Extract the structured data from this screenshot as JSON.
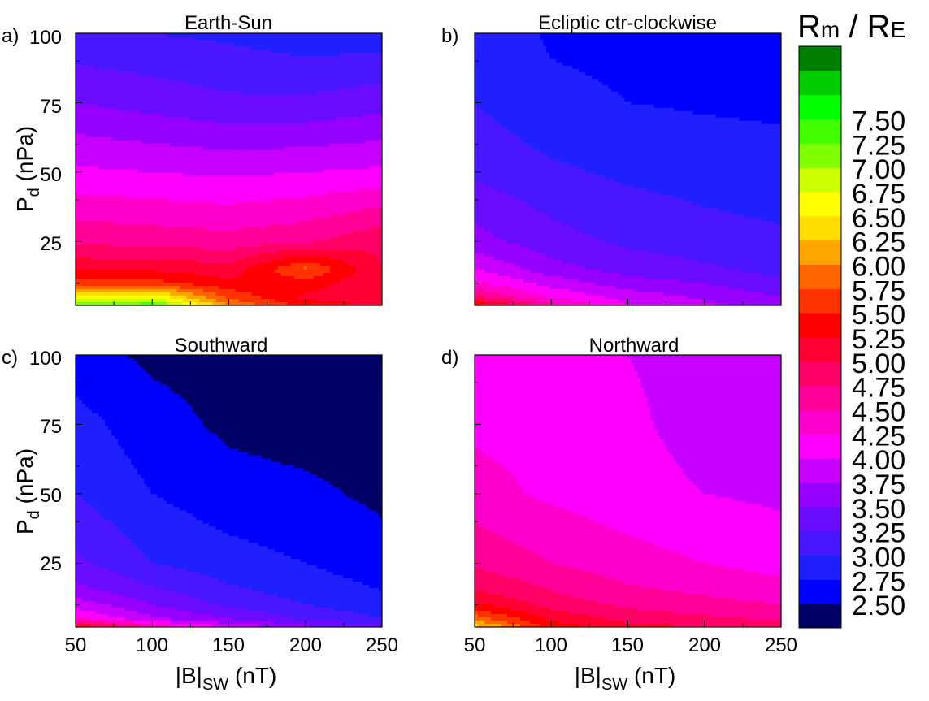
{
  "chart_data": [
    {
      "type": "heatmap",
      "panel": "a)",
      "title": "Earth-Sun",
      "x_label": "|B|",
      "x_label_sub": "SW",
      "x_label_unit": "(nT)",
      "y_label": "P",
      "y_label_sub": "d",
      "y_label_unit": "(nPa)",
      "xlim": [
        50,
        250
      ],
      "ylim": [
        2,
        100
      ],
      "x": [
        50,
        100,
        150,
        200,
        250
      ],
      "y": [
        2,
        5,
        10,
        15,
        25,
        50,
        75,
        100
      ],
      "z": [
        [
          7.3,
          7.4,
          6.0,
          5.4,
          5.2
        ],
        [
          6.6,
          6.7,
          5.7,
          5.2,
          5.0
        ],
        [
          5.6,
          5.6,
          5.3,
          5.4,
          5.0
        ],
        [
          5.2,
          5.2,
          5.1,
          5.8,
          5.0
        ],
        [
          4.7,
          4.65,
          4.6,
          4.7,
          4.95
        ],
        [
          4.05,
          4.0,
          3.95,
          4.0,
          4.05
        ],
        [
          3.5,
          3.4,
          3.3,
          3.3,
          3.4
        ],
        [
          3.05,
          3.0,
          2.95,
          2.85,
          2.85
        ]
      ]
    },
    {
      "type": "heatmap",
      "panel": "b)",
      "title": "Ecliptic ctr-clockwise",
      "x_label": "",
      "y_label": "",
      "xlim": [
        50,
        250
      ],
      "ylim": [
        2,
        100
      ],
      "x": [
        50,
        100,
        150,
        200,
        250
      ],
      "y": [
        2,
        5,
        10,
        15,
        25,
        50,
        75,
        100
      ],
      "z": [
        [
          5.5,
          4.6,
          4.0,
          3.8,
          3.6
        ],
        [
          4.8,
          4.2,
          3.9,
          3.7,
          3.5
        ],
        [
          4.3,
          3.9,
          3.6,
          3.5,
          3.3
        ],
        [
          4.0,
          3.6,
          3.4,
          3.3,
          3.15
        ],
        [
          3.6,
          3.35,
          3.2,
          3.1,
          3.05
        ],
        [
          3.2,
          3.05,
          2.95,
          2.9,
          2.85
        ],
        [
          3.0,
          2.8,
          2.75,
          2.72,
          2.7
        ],
        [
          2.9,
          2.72,
          2.7,
          2.68,
          2.66
        ]
      ]
    },
    {
      "type": "heatmap",
      "panel": "c)",
      "title": "Southward",
      "x_label": "|B|",
      "x_label_sub": "SW",
      "x_label_unit": "(nT)",
      "y_label": "P",
      "y_label_sub": "d",
      "y_label_unit": "(nPa)",
      "xlim": [
        50,
        250
      ],
      "ylim": [
        2,
        100
      ],
      "x": [
        50,
        100,
        150,
        200,
        250
      ],
      "y": [
        2,
        5,
        10,
        15,
        25,
        50,
        75,
        100
      ],
      "z": [
        [
          5.4,
          4.5,
          4.0,
          3.6,
          3.3
        ],
        [
          4.3,
          3.8,
          3.5,
          3.2,
          3.0
        ],
        [
          3.9,
          3.5,
          3.2,
          3.0,
          2.85
        ],
        [
          3.6,
          3.3,
          3.05,
          2.9,
          2.75
        ],
        [
          3.3,
          3.0,
          2.85,
          2.75,
          2.6
        ],
        [
          3.0,
          2.75,
          2.6,
          2.55,
          2.45
        ],
        [
          2.85,
          2.6,
          2.45,
          2.4,
          2.4
        ],
        [
          2.6,
          2.45,
          2.4,
          2.4,
          2.4
        ]
      ]
    },
    {
      "type": "heatmap",
      "panel": "d)",
      "title": "Northward",
      "x_label": "|B|",
      "x_label_sub": "SW",
      "x_label_unit": "(nT)",
      "y_label": "",
      "xlim": [
        50,
        250
      ],
      "ylim": [
        2,
        100
      ],
      "x": [
        50,
        100,
        150,
        200,
        250
      ],
      "y": [
        2,
        5,
        10,
        15,
        25,
        50,
        75,
        100
      ],
      "z": [
        [
          6.4,
          5.4,
          5.1,
          5.0,
          4.9
        ],
        [
          5.9,
          5.2,
          4.9,
          4.8,
          4.7
        ],
        [
          5.3,
          4.9,
          4.7,
          4.6,
          4.5
        ],
        [
          5.0,
          4.75,
          4.55,
          4.45,
          4.35
        ],
        [
          4.7,
          4.5,
          4.35,
          4.25,
          4.15
        ],
        [
          4.35,
          4.2,
          4.1,
          4.0,
          3.95
        ],
        [
          4.2,
          4.15,
          4.05,
          3.9,
          3.85
        ],
        [
          4.15,
          4.1,
          4.0,
          3.9,
          3.85
        ]
      ]
    }
  ],
  "axes": {
    "x_ticks": [
      "50",
      "100",
      "150",
      "200",
      "250"
    ],
    "y_ticks": [
      "25",
      "50",
      "75",
      "100"
    ]
  },
  "colorbar": {
    "title_main_1": "R",
    "title_sub_1": "m",
    "title_sep": " / ",
    "title_main_2": "R",
    "title_sub_2": "E",
    "levels": [
      2.5,
      2.75,
      3.0,
      3.25,
      3.5,
      3.75,
      4.0,
      4.25,
      4.5,
      4.75,
      5.0,
      5.25,
      5.5,
      5.75,
      6.0,
      6.25,
      6.5,
      6.75,
      7.0,
      7.25,
      7.5
    ],
    "labels": [
      "2.50",
      "2.75",
      "3.00",
      "3.25",
      "3.50",
      "3.75",
      "4.00",
      "4.25",
      "4.50",
      "4.75",
      "5.00",
      "5.25",
      "5.50",
      "5.75",
      "6.00",
      "6.25",
      "6.50",
      "6.75",
      "7.00",
      "7.25",
      "7.50"
    ],
    "colors": [
      "#000066",
      "#0000ff",
      "#2020ff",
      "#4a16ff",
      "#6a0cff",
      "#9600ff",
      "#c800ff",
      "#ff00ff",
      "#ff00cc",
      "#ff0099",
      "#ff0066",
      "#ff0033",
      "#ff0000",
      "#ff3300",
      "#ff6600",
      "#ffa500",
      "#ffdd00",
      "#ffff00",
      "#ccff00",
      "#80ff00",
      "#40ff00",
      "#00ff00",
      "#00cc00",
      "#008000"
    ]
  }
}
